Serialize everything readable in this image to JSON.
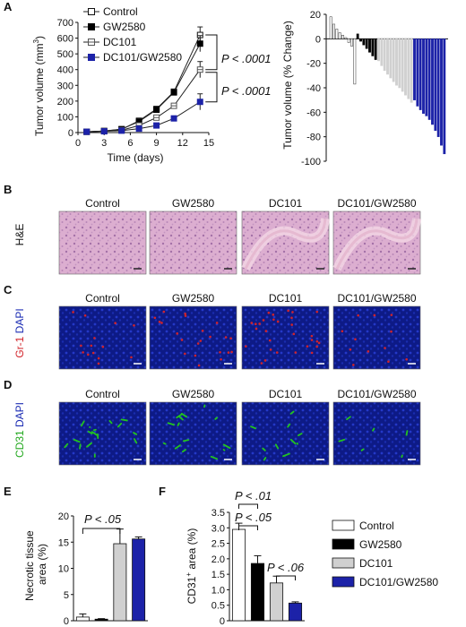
{
  "panel_letters": [
    "A",
    "B",
    "C",
    "D",
    "E",
    "F"
  ],
  "colors": {
    "control": "#ffffff",
    "gw2580": "#000000",
    "dc101": "#d0d0d0",
    "combo": "#1c22a8",
    "he_pink": "#d9a6c8",
    "dapi_blue": "#1a2bb3",
    "gr1_red": "#d2232a",
    "cd31_green": "#22c41e"
  },
  "row_labels": {
    "he": "H&E",
    "gr1_part1": "Gr-1",
    "gr1_part2": "DAPI",
    "cd31_part1": "CD31",
    "cd31_part2": "DAPI"
  },
  "image_columns": [
    "Control",
    "GW2580",
    "DC101",
    "DC101/GW2580"
  ],
  "pvalues": {
    "a_top": "P < .0001",
    "a_bottom": "P < .0001",
    "e": "P < .05",
    "f_top": "P < .01",
    "f_mid": "P < .05",
    "f_low": "P < .06"
  },
  "chart_data": [
    {
      "type": "line",
      "panel": "A-left",
      "xlabel": "Time (days)",
      "ylabel": "Tumor volume (mm 3)",
      "ylabel_main": "Tumor volume (mm",
      "ylabel_sup": "3",
      "ylabel_tail": ")",
      "xlim": [
        0,
        15
      ],
      "ylim": [
        0,
        700
      ],
      "x_ticks": [
        "0",
        "3",
        "6",
        "9",
        "12",
        "15"
      ],
      "y_ticks": [
        "0",
        "100",
        "200",
        "300",
        "400",
        "500",
        "600",
        "700"
      ],
      "x": [
        1,
        3,
        5,
        7,
        9,
        11,
        14
      ],
      "series": [
        {
          "name": "Control",
          "values": [
            5,
            10,
            20,
            75,
            150,
            260,
            620
          ],
          "marker": "open-square",
          "color": "#ffffff"
        },
        {
          "name": "GW2580",
          "values": [
            5,
            10,
            22,
            70,
            145,
            255,
            565
          ],
          "marker": "filled-square",
          "color": "#000000"
        },
        {
          "name": "DC101",
          "values": [
            5,
            10,
            15,
            45,
            95,
            170,
            400
          ],
          "marker": "gray-square",
          "color": "#d0d0d0"
        },
        {
          "name": "DC101/GW2580",
          "values": [
            5,
            8,
            12,
            25,
            45,
            90,
            195
          ],
          "marker": "blue-square",
          "color": "#1c22a8"
        }
      ],
      "legend": "top-left"
    },
    {
      "type": "bar",
      "panel": "A-right",
      "ylabel": "Tumor volume (% Change)",
      "ylim": [
        -100,
        20
      ],
      "y_ticks": [
        "20",
        "0",
        "-20",
        "-40",
        "-60",
        "-80",
        "-100"
      ],
      "series": [
        {
          "name": "Control",
          "color": "#ffffff",
          "values": [
            18,
            12,
            8,
            5,
            3,
            1,
            -3,
            -6,
            -37
          ]
        },
        {
          "name": "GW2580",
          "color": "#000000",
          "values": [
            4,
            -2,
            -5,
            -8,
            -11,
            -14,
            -17
          ]
        },
        {
          "name": "DC101",
          "color": "#d0d0d0",
          "values": [
            -18,
            -22,
            -26,
            -29,
            -32,
            -35,
            -38,
            -40,
            -43,
            -46,
            -49,
            -52
          ]
        },
        {
          "name": "DC101/GW2580",
          "color": "#1c22a8",
          "values": [
            -50,
            -55,
            -58,
            -61,
            -63,
            -66,
            -70,
            -75,
            -80,
            -87,
            -94
          ]
        }
      ]
    },
    {
      "type": "bar",
      "panel": "E",
      "ylabel": "Necrotic tissue area (%)",
      "ylabel_lines": [
        "Necrotic tissue",
        "area (%)"
      ],
      "categories": [
        "Control",
        "GW2580",
        "DC101",
        "DC101/GW2580"
      ],
      "values": [
        0.7,
        0.3,
        14.7,
        15.6
      ],
      "errors": [
        0.6,
        0.1,
        2.8,
        0.4
      ],
      "ylim": [
        0,
        20
      ],
      "y_ticks": [
        "0",
        "5",
        "10",
        "15",
        "20"
      ]
    },
    {
      "type": "bar",
      "panel": "F",
      "ylabel": "CD31+ area (%)",
      "ylabel_main": "CD31",
      "ylabel_sup": "+",
      "ylabel_tail": " area (%)",
      "categories": [
        "Control",
        "GW2580",
        "DC101",
        "DC101/GW2580"
      ],
      "values": [
        2.95,
        1.85,
        1.22,
        0.57
      ],
      "errors": [
        0.2,
        0.25,
        0.22,
        0.04
      ],
      "ylim": [
        0,
        3.5
      ],
      "y_ticks": [
        "0",
        "0.5",
        "1.0",
        "1.5",
        "2.0",
        "2.5",
        "3.0",
        "3.5"
      ],
      "legend": [
        "Control",
        "GW2580",
        "DC101",
        "DC101/GW2580"
      ]
    }
  ]
}
